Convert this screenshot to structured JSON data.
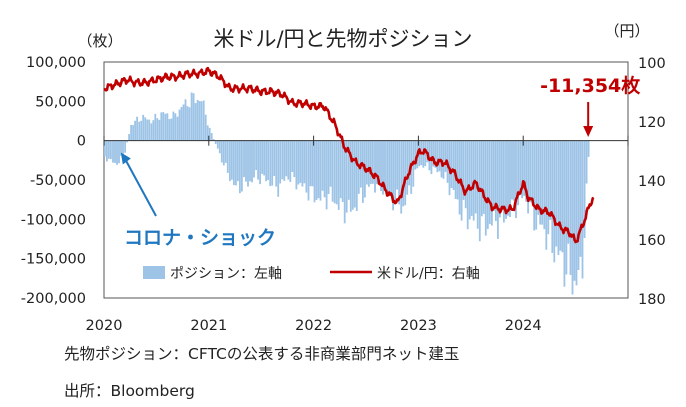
{
  "chart_data": {
    "type": "bar+line",
    "title": "米ドル/円と先物ポジション",
    "left_axis": {
      "unit": "（枚）",
      "ticks": [
        "100,000",
        "50,000",
        "0",
        "-50,000",
        "-100,000",
        "-150,000",
        "-200,000"
      ],
      "values": [
        100000,
        50000,
        0,
        -50000,
        -100000,
        -150000,
        -200000
      ],
      "ylim": [
        -200000,
        100000
      ]
    },
    "right_axis": {
      "unit": "（円）",
      "ticks": [
        "100",
        "120",
        "140",
        "160",
        "180"
      ],
      "values": [
        100,
        120,
        140,
        160,
        180
      ],
      "ylim": [
        100,
        180
      ],
      "inverted": true
    },
    "x_axis": {
      "ticks": [
        "2020",
        "2021",
        "2022",
        "2023",
        "2024"
      ],
      "xlim": [
        2020.0,
        2025.0
      ]
    },
    "series": [
      {
        "name": "ポジション：左軸",
        "type": "bar",
        "color": "#9dc3e6",
        "axis": "left",
        "points": [
          [
            2020.0,
            -20000
          ],
          [
            2020.1,
            -30000
          ],
          [
            2020.18,
            -20000
          ],
          [
            2020.25,
            20000
          ],
          [
            2020.35,
            30000
          ],
          [
            2020.45,
            25000
          ],
          [
            2020.55,
            35000
          ],
          [
            2020.65,
            30000
          ],
          [
            2020.75,
            45000
          ],
          [
            2020.85,
            55000
          ],
          [
            2020.93,
            50000
          ],
          [
            2021.0,
            15000
          ],
          [
            2021.06,
            -5000
          ],
          [
            2021.15,
            -35000
          ],
          [
            2021.25,
            -60000
          ],
          [
            2021.35,
            -55000
          ],
          [
            2021.45,
            -45000
          ],
          [
            2021.55,
            -50000
          ],
          [
            2021.65,
            -60000
          ],
          [
            2021.75,
            -45000
          ],
          [
            2021.85,
            -55000
          ],
          [
            2021.95,
            -65000
          ],
          [
            2022.05,
            -75000
          ],
          [
            2022.15,
            -70000
          ],
          [
            2022.25,
            -85000
          ],
          [
            2022.35,
            -90000
          ],
          [
            2022.45,
            -70000
          ],
          [
            2022.55,
            -55000
          ],
          [
            2022.65,
            -60000
          ],
          [
            2022.75,
            -75000
          ],
          [
            2022.85,
            -85000
          ],
          [
            2022.92,
            -60000
          ],
          [
            2023.0,
            -30000
          ],
          [
            2023.1,
            -35000
          ],
          [
            2023.2,
            -40000
          ],
          [
            2023.3,
            -60000
          ],
          [
            2023.4,
            -90000
          ],
          [
            2023.5,
            -100000
          ],
          [
            2023.6,
            -110000
          ],
          [
            2023.7,
            -105000
          ],
          [
            2023.8,
            -100000
          ],
          [
            2023.9,
            -85000
          ],
          [
            2024.0,
            -70000
          ],
          [
            2024.1,
            -100000
          ],
          [
            2024.2,
            -115000
          ],
          [
            2024.3,
            -140000
          ],
          [
            2024.4,
            -160000
          ],
          [
            2024.48,
            -180000
          ],
          [
            2024.55,
            -170000
          ],
          [
            2024.62,
            -11354
          ]
        ]
      },
      {
        "name": "米ドル/円：右軸",
        "type": "line",
        "color": "#c00000",
        "axis": "right",
        "points": [
          [
            2020.0,
            109
          ],
          [
            2020.08,
            108
          ],
          [
            2020.15,
            107
          ],
          [
            2020.22,
            106
          ],
          [
            2020.3,
            107
          ],
          [
            2020.4,
            107
          ],
          [
            2020.5,
            106
          ],
          [
            2020.6,
            105
          ],
          [
            2020.7,
            105
          ],
          [
            2020.8,
            104
          ],
          [
            2020.9,
            104
          ],
          [
            2021.0,
            103
          ],
          [
            2021.1,
            105
          ],
          [
            2021.2,
            109
          ],
          [
            2021.3,
            109
          ],
          [
            2021.4,
            109
          ],
          [
            2021.5,
            110
          ],
          [
            2021.6,
            110
          ],
          [
            2021.7,
            111
          ],
          [
            2021.8,
            114
          ],
          [
            2021.9,
            114
          ],
          [
            2022.0,
            115
          ],
          [
            2022.1,
            115
          ],
          [
            2022.2,
            121
          ],
          [
            2022.3,
            129
          ],
          [
            2022.4,
            134
          ],
          [
            2022.5,
            136
          ],
          [
            2022.6,
            139
          ],
          [
            2022.7,
            144
          ],
          [
            2022.8,
            148
          ],
          [
            2022.9,
            138
          ],
          [
            2023.0,
            131
          ],
          [
            2023.05,
            130
          ],
          [
            2023.15,
            134
          ],
          [
            2023.25,
            134
          ],
          [
            2023.35,
            138
          ],
          [
            2023.45,
            144
          ],
          [
            2023.55,
            141
          ],
          [
            2023.62,
            145
          ],
          [
            2023.7,
            149
          ],
          [
            2023.8,
            150
          ],
          [
            2023.9,
            150
          ],
          [
            2024.0,
            141
          ],
          [
            2024.05,
            146
          ],
          [
            2024.15,
            150
          ],
          [
            2024.25,
            151
          ],
          [
            2024.35,
            156
          ],
          [
            2024.45,
            158
          ],
          [
            2024.5,
            161
          ],
          [
            2024.55,
            157
          ],
          [
            2024.6,
            152
          ],
          [
            2024.65,
            147
          ],
          [
            2024.68,
            146
          ]
        ]
      }
    ],
    "annotations": [
      {
        "text": "-11,354枚",
        "x": 2024.62,
        "y": -11354,
        "color": "#c00000"
      },
      {
        "text": "コロナ・ショック",
        "x": 2020.25,
        "y": -20000,
        "color": "#1f77c0"
      }
    ],
    "legend": {
      "placement": "bottom-center"
    },
    "grid": false
  },
  "notes": [
    "先物ポジション：CFTCの公表する非商業部門ネット建玉",
    "出所：Bloomberg"
  ]
}
